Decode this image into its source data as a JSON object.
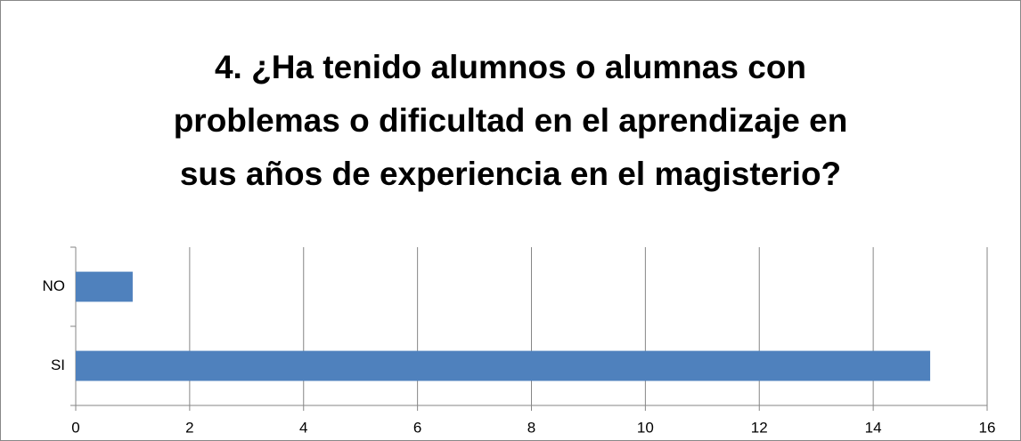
{
  "chart_data": {
    "type": "barh",
    "title": [
      "4. ¿Ha tenido alumnos o alumnas con",
      "problemas o dificultad en el aprendizaje en",
      "sus años de experiencia en el magisterio?"
    ],
    "categories": [
      "SI",
      "NO"
    ],
    "values": [
      15,
      1
    ],
    "color": "#4f81bd",
    "xlim": [
      0,
      16
    ],
    "xticks": [
      0,
      2,
      4,
      6,
      8,
      10,
      12,
      14,
      16
    ],
    "grid": true
  }
}
